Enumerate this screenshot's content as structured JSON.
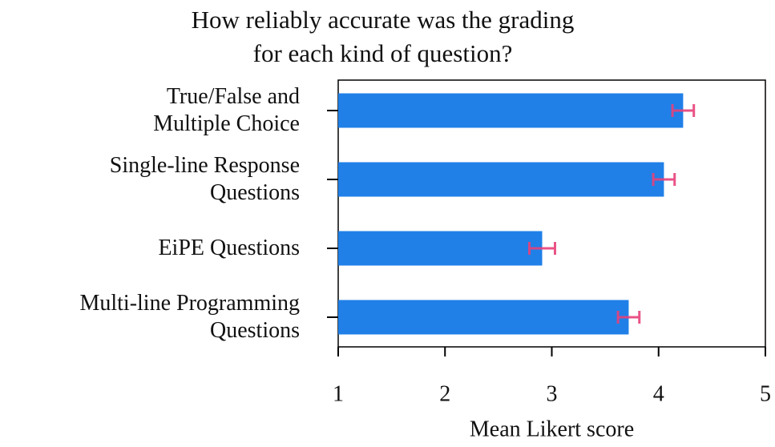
{
  "chart_data": {
    "type": "barh",
    "title": "How reliably accurate was the grading\nfor each kind of question?",
    "categories": [
      "True/False and\nMultiple Choice",
      "Single-line Response\nQuestions",
      "EiPE Questions",
      "Multi-line Programming\nQuestions"
    ],
    "values": [
      4.23,
      4.05,
      2.91,
      3.72
    ],
    "errors": [
      0.1,
      0.1,
      0.12,
      0.1
    ],
    "color": "#2080e8",
    "error_color": "#e8407a",
    "xlabel": "Mean Likert score",
    "xlim": [
      1,
      5
    ],
    "xticks": [
      1,
      2,
      3,
      4,
      5
    ]
  }
}
